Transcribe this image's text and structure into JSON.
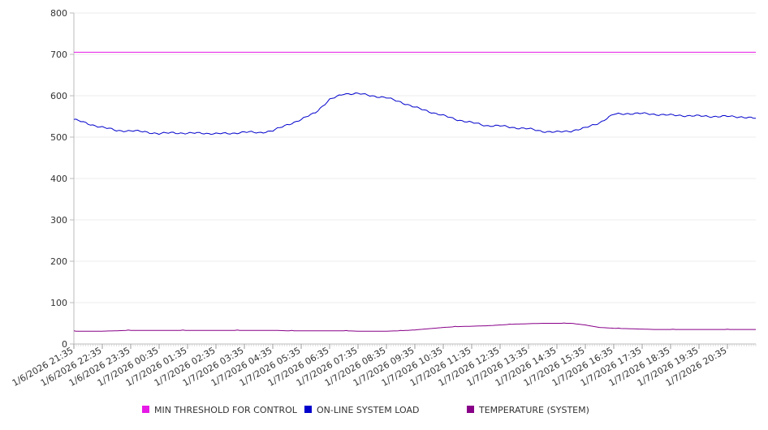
{
  "chart_data": {
    "type": "line",
    "ylim": [
      0,
      800
    ],
    "yticks": [
      0,
      100,
      200,
      300,
      400,
      500,
      600,
      700,
      800
    ],
    "x_tick_labels": [
      "1/6/2026 21:35",
      "1/6/2026 22:35",
      "1/6/2026 23:35",
      "1/7/2026 00:35",
      "1/7/2026 01:35",
      "1/7/2026 02:35",
      "1/7/2026 03:35",
      "1/7/2026 04:35",
      "1/7/2026 05:35",
      "1/7/2026 06:35",
      "1/7/2026 07:35",
      "1/7/2026 08:35",
      "1/7/2026 09:35",
      "1/7/2026 10:35",
      "1/7/2026 11:35",
      "1/7/2026 12:35",
      "1/7/2026 13:35",
      "1/7/2026 14:35",
      "1/7/2026 15:35",
      "1/7/2026 16:35",
      "1/7/2026 17:35",
      "1/7/2026 18:35",
      "1/7/2026 19:35",
      "1/7/2026 20:35"
    ],
    "x_hours": [
      0,
      0.5,
      1,
      1.5,
      2,
      2.5,
      3,
      3.5,
      4,
      4.5,
      5,
      5.5,
      6,
      6.5,
      7,
      7.5,
      8,
      8.5,
      9,
      9.5,
      10,
      10.5,
      11,
      11.5,
      12,
      12.5,
      13,
      13.5,
      14,
      14.5,
      15,
      15.5,
      16,
      16.5,
      17,
      17.5,
      18,
      18.5,
      19,
      19.5,
      20,
      20.5,
      21,
      21.5,
      22,
      22.5,
      23,
      23.5,
      24
    ],
    "grid": true,
    "legend_position": "bottom",
    "series": [
      {
        "name": "MIN THRESHOLD FOR CONTROL",
        "color": "#e619e6",
        "values": [
          705,
          705,
          705,
          705,
          705,
          705,
          705,
          705,
          705,
          705,
          705,
          705,
          705,
          705,
          705,
          705,
          705,
          705,
          705,
          705,
          705,
          705,
          705,
          705,
          705,
          705,
          705,
          705,
          705,
          705,
          705,
          705,
          705,
          705,
          705,
          705,
          705,
          705,
          705,
          705,
          705,
          705,
          705,
          705,
          705,
          705,
          705,
          705,
          705
        ]
      },
      {
        "name": "ON-LINE SYSTEM LOAD",
        "color": "#0000cc",
        "values": [
          543,
          532,
          524,
          516,
          515,
          513,
          508,
          511,
          509,
          510,
          508,
          509,
          512,
          511,
          515,
          530,
          542,
          560,
          590,
          605,
          605,
          600,
          595,
          585,
          572,
          562,
          552,
          542,
          535,
          528,
          527,
          523,
          520,
          514,
          512,
          515,
          522,
          535,
          555,
          557,
          557,
          555,
          553,
          552,
          551,
          550,
          550,
          549,
          545
        ]
      },
      {
        "name": "TEMPERATURE (SYSTEM)",
        "color": "#880088",
        "values": [
          31,
          31,
          31,
          32,
          33,
          33,
          33,
          33,
          33,
          33,
          33,
          33,
          33,
          33,
          33,
          32,
          32,
          32,
          32,
          32,
          31,
          31,
          31,
          32,
          34,
          37,
          40,
          42,
          43,
          44,
          46,
          48,
          49,
          50,
          50,
          50,
          46,
          40,
          38,
          37,
          36,
          35,
          35,
          35,
          35,
          35,
          35,
          35,
          35
        ]
      }
    ]
  }
}
